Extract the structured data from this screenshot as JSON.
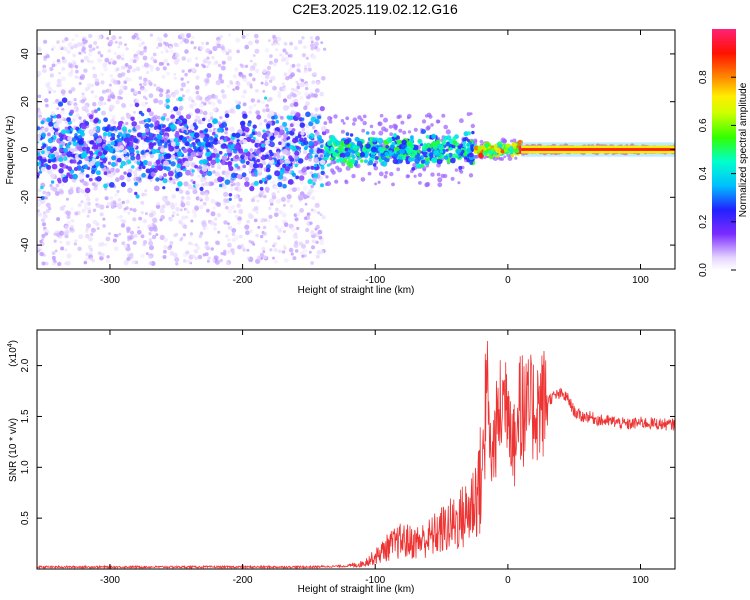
{
  "title": "C2E3.2025.119.02.12.G16",
  "colors": {
    "signal_line": "#ee3333",
    "axis": "#000000"
  },
  "chart_data": [
    {
      "type": "heatmap",
      "title": "C2E3.2025.119.02.12.G16",
      "xlabel": "Height of straight line (km)",
      "ylabel": "Frequency (Hz)",
      "xlim": [
        -355,
        126
      ],
      "ylim": [
        -50,
        50
      ],
      "xticks": [
        -300,
        -200,
        -100,
        0,
        100
      ],
      "xtick_labels": [
        "-300",
        "-200",
        "-100",
        "0",
        "100"
      ],
      "yticks": [
        -40,
        -20,
        0,
        20,
        40
      ],
      "ytick_labels": [
        "-40",
        "-20",
        "0",
        "20",
        "40"
      ],
      "colorbar": {
        "label": "Normalized spectral amplitude",
        "range": [
          0,
          1
        ],
        "ticks": [
          0.0,
          0.2,
          0.4,
          0.6,
          0.8
        ],
        "tick_labels": [
          "0.0",
          "0.2",
          "0.4",
          "0.6",
          "0.8"
        ]
      },
      "regions": [
        {
          "x_range": [
            -355,
            -138
          ],
          "freq_spread_hz": 48,
          "core_band_hz": [
            -12,
            12
          ],
          "amplitude": [
            0.02,
            0.4
          ]
        },
        {
          "x_range": [
            -138,
            -25
          ],
          "freq_spread_hz": 15,
          "core_band_hz": [
            -5,
            5
          ],
          "amplitude": [
            0.2,
            0.55
          ]
        },
        {
          "x_range": [
            -25,
            10
          ],
          "freq_spread_hz": 4,
          "core_band_hz": [
            -2,
            2
          ],
          "amplitude": [
            0.4,
            0.9
          ]
        },
        {
          "x_range": [
            10,
            126
          ],
          "freq_spread_hz": 1,
          "core_band_hz": [
            -1,
            1
          ],
          "amplitude": [
            0.95,
            1.0
          ]
        }
      ]
    },
    {
      "type": "line",
      "xlabel": "Height of straight line (km)",
      "ylabel": "SNR (10 * v/v)",
      "y_multiplier": "(x10",
      "y_multiplier_exp": "4",
      "xlim": [
        -355,
        126
      ],
      "ylim": [
        0,
        2.35
      ],
      "xticks": [
        -300,
        -200,
        -100,
        0,
        100
      ],
      "xtick_labels": [
        "-300",
        "-200",
        "-100",
        "0",
        "100"
      ],
      "yticks": [
        0.5,
        1.0,
        1.5,
        2.0
      ],
      "ytick_labels": [
        "0.5",
        "1.0",
        "1.5",
        "2.0"
      ],
      "series": [
        {
          "x": [
            -355,
            -300,
            -250,
            -200,
            -150,
            -120,
            -110,
            -100,
            -90,
            -80,
            -70,
            -60,
            -50,
            -40,
            -30,
            -25,
            -20,
            -18,
            -15,
            -12,
            -10,
            -5,
            0,
            5,
            10,
            15,
            20,
            25,
            30,
            35,
            40,
            45,
            50,
            55,
            60,
            70,
            80,
            90,
            100,
            110,
            120,
            126
          ],
          "y": [
            0.02,
            0.02,
            0.02,
            0.02,
            0.02,
            0.03,
            0.05,
            0.12,
            0.22,
            0.28,
            0.26,
            0.3,
            0.38,
            0.45,
            0.55,
            0.7,
            0.9,
            1.2,
            1.4,
            1.05,
            1.3,
            1.6,
            1.75,
            1.2,
            1.5,
            1.55,
            1.58,
            1.62,
            1.66,
            1.7,
            1.72,
            1.68,
            1.55,
            1.5,
            1.5,
            1.46,
            1.45,
            1.42,
            1.44,
            1.43,
            1.42,
            1.42
          ]
        }
      ]
    }
  ]
}
